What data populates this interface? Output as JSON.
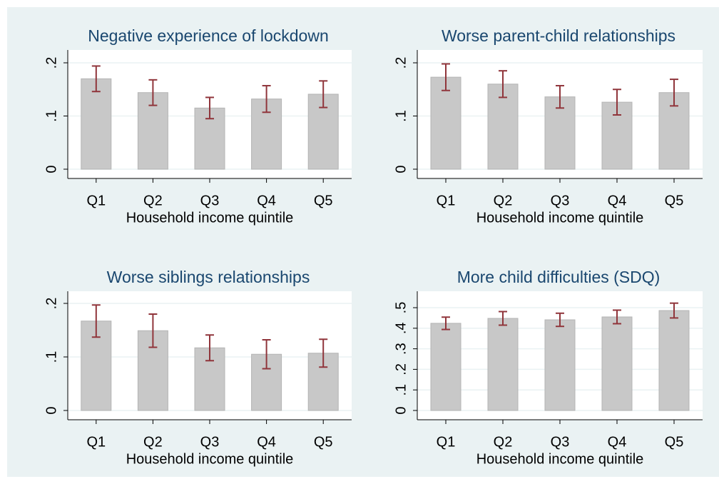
{
  "chart_data": [
    {
      "type": "bar",
      "title": "Negative experience of lockdown",
      "x_label": "Household income quintile",
      "categories": [
        "Q1",
        "Q2",
        "Q3",
        "Q4",
        "Q5"
      ],
      "values": [
        0.17,
        0.144,
        0.115,
        0.132,
        0.141
      ],
      "errors": [
        0.024,
        0.024,
        0.02,
        0.025,
        0.025
      ],
      "color": "#c8c8c8",
      "error_color": "#90353b",
      "grid": true,
      "ylim": [
        0,
        0.2
      ],
      "yticks": [
        0,
        {
          "value": 0.1,
          "label": ".1"
        },
        {
          "value": 0.2,
          "label": ".2"
        }
      ]
    },
    {
      "type": "bar",
      "title": "Worse parent-child relationships",
      "x_label": "Household income quintile",
      "categories": [
        "Q1",
        "Q2",
        "Q3",
        "Q4",
        "Q5"
      ],
      "values": [
        0.173,
        0.16,
        0.136,
        0.126,
        0.144
      ],
      "errors": [
        0.025,
        0.025,
        0.021,
        0.024,
        0.025
      ],
      "color": "#c8c8c8",
      "error_color": "#90353b",
      "grid": true,
      "ylim": [
        0,
        0.2
      ],
      "yticks": [
        0,
        {
          "value": 0.1,
          "label": ".1"
        },
        {
          "value": 0.2,
          "label": ".2"
        }
      ]
    },
    {
      "type": "bar",
      "title": "Worse siblings relationships",
      "x_label": "Household income quintile",
      "categories": [
        "Q1",
        "Q2",
        "Q3",
        "Q4",
        "Q5"
      ],
      "values": [
        0.167,
        0.149,
        0.117,
        0.105,
        0.107
      ],
      "errors": [
        0.03,
        0.031,
        0.024,
        0.027,
        0.026
      ],
      "color": "#c8c8c8",
      "error_color": "#90353b",
      "grid": true,
      "ylim": [
        0,
        0.2
      ],
      "yticks": [
        0,
        {
          "value": 0.1,
          "label": ".1"
        },
        {
          "value": 0.2,
          "label": ".2"
        }
      ]
    },
    {
      "type": "bar",
      "title": "More child difficulties (SDQ)",
      "x_label": "Household income quintile",
      "categories": [
        "Q1",
        "Q2",
        "Q3",
        "Q4",
        "Q5"
      ],
      "values": [
        0.424,
        0.448,
        0.441,
        0.455,
        0.486
      ],
      "errors": [
        0.03,
        0.033,
        0.032,
        0.033,
        0.036
      ],
      "color": "#c8c8c8",
      "error_color": "#90353b",
      "grid": true,
      "ylim": [
        0,
        0.5
      ],
      "yticks": [
        0,
        {
          "value": 0.1,
          "label": ".1"
        },
        {
          "value": 0.2,
          "label": ".2"
        },
        {
          "value": 0.3,
          "label": ".3"
        },
        {
          "value": 0.4,
          "label": ".4"
        },
        {
          "value": 0.5,
          "label": ".5"
        }
      ]
    }
  ]
}
